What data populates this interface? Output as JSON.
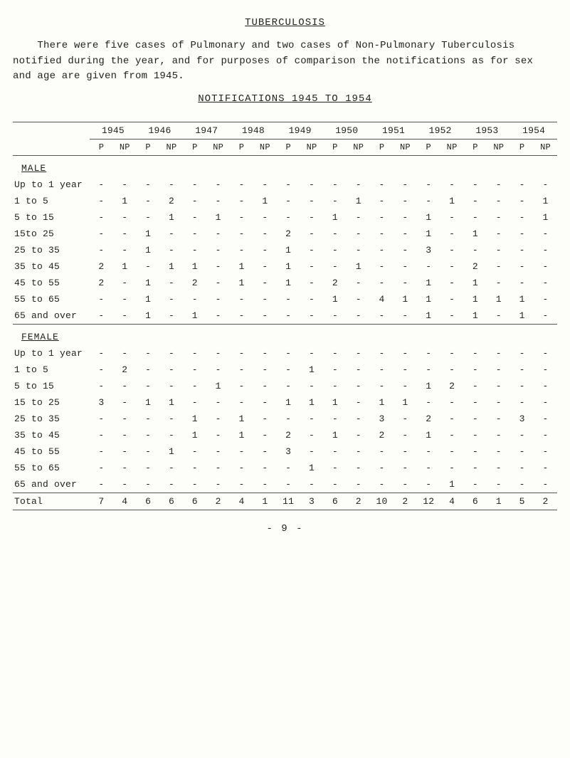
{
  "title": "TUBERCULOSIS",
  "intro": "    There were five cases of Pulmonary and two cases of Non-Pulmonary Tuberculosis notified during the year, and for purposes of comparison the notifications as for sex and age are given from 1945.",
  "subtitle": "NOTIFICATIONS 1945 TO 1954",
  "years": [
    "1945",
    "1946",
    "1947",
    "1948",
    "1949",
    "1950",
    "1951",
    "1952",
    "1953",
    "1954"
  ],
  "pnp_labels": [
    "P",
    "NP",
    "P",
    "NP",
    "P",
    "NP",
    "P",
    "NP",
    "P",
    "NP",
    "P",
    "NP",
    "P",
    "NP",
    "P",
    "NP",
    "P",
    "NP",
    "P",
    "NP"
  ],
  "groups": [
    {
      "label": "MALE",
      "rows": [
        {
          "label": "Up to 1 year",
          "cells": [
            "-",
            "-",
            "-",
            "-",
            "-",
            "-",
            "-",
            "-",
            "-",
            "-",
            "-",
            "-",
            "-",
            "-",
            "-",
            "-",
            "-",
            "-",
            "-",
            "-"
          ]
        },
        {
          "label": "1 to 5",
          "cells": [
            "-",
            "1",
            "-",
            "2",
            "-",
            "-",
            "-",
            "1",
            "-",
            "-",
            "-",
            "1",
            "-",
            "-",
            "-",
            "1",
            "-",
            "-",
            "-",
            "1"
          ]
        },
        {
          "label": "5 to 15",
          "cells": [
            "-",
            "-",
            "-",
            "1",
            "-",
            "1",
            "-",
            "-",
            "-",
            "-",
            "1",
            "-",
            "-",
            "-",
            "1",
            "-",
            "-",
            "-",
            "-",
            "1"
          ]
        },
        {
          "label": "15to 25",
          "cells": [
            "-",
            "-",
            "1",
            "-",
            "-",
            "-",
            "-",
            "-",
            "2",
            "-",
            "-",
            "-",
            "-",
            "-",
            "1",
            "-",
            "1",
            "-",
            "-",
            "-"
          ]
        },
        {
          "label": "25 to 35",
          "cells": [
            "-",
            "-",
            "1",
            "-",
            "-",
            "-",
            "-",
            "-",
            "1",
            "-",
            "-",
            "-",
            "-",
            "-",
            "3",
            "-",
            "-",
            "-",
            "-",
            "-"
          ]
        },
        {
          "label": "35 to 45",
          "cells": [
            "2",
            "1",
            "-",
            "1",
            "1",
            "-",
            "1",
            "-",
            "1",
            "-",
            "-",
            "1",
            "-",
            "-",
            "-",
            "-",
            "2",
            "-",
            "-",
            "-"
          ]
        },
        {
          "label": "45 to 55",
          "cells": [
            "2",
            "-",
            "1",
            "-",
            "2",
            "-",
            "1",
            "-",
            "1",
            "-",
            "2",
            "-",
            "-",
            "-",
            "1",
            "-",
            "1",
            "-",
            "-",
            "-"
          ]
        },
        {
          "label": "55 to 65",
          "cells": [
            "-",
            "-",
            "1",
            "-",
            "-",
            "-",
            "-",
            "-",
            "-",
            "-",
            "1",
            "-",
            "4",
            "1",
            "1",
            "-",
            "1",
            "1",
            "1",
            "-"
          ]
        },
        {
          "label": "65 and over",
          "cells": [
            "-",
            "-",
            "1",
            "-",
            "1",
            "-",
            "-",
            "-",
            "-",
            "-",
            "-",
            "-",
            "-",
            "-",
            "1",
            "-",
            "1",
            "-",
            "1",
            "-"
          ]
        }
      ]
    },
    {
      "label": "FEMALE",
      "rows": [
        {
          "label": "Up to 1 year",
          "cells": [
            "-",
            "-",
            "-",
            "-",
            "-",
            "-",
            "-",
            "-",
            "-",
            "-",
            "-",
            "-",
            "-",
            "-",
            "-",
            "-",
            "-",
            "-",
            "-",
            "-"
          ]
        },
        {
          "label": "1 to 5",
          "cells": [
            "-",
            "2",
            "-",
            "-",
            "-",
            "-",
            "-",
            "-",
            "-",
            "1",
            "-",
            "-",
            "-",
            "-",
            "-",
            "-",
            "-",
            "-",
            "-",
            "-"
          ]
        },
        {
          "label": "5 to 15",
          "cells": [
            "-",
            "-",
            "-",
            "-",
            "-",
            "1",
            "-",
            "-",
            "-",
            "-",
            "-",
            "-",
            "-",
            "-",
            "1",
            "2",
            "-",
            "-",
            "-",
            "-"
          ]
        },
        {
          "label": "15 to 25",
          "cells": [
            "3",
            "-",
            "1",
            "1",
            "-",
            "-",
            "-",
            "-",
            "1",
            "1",
            "1",
            "-",
            "1",
            "1",
            "-",
            "-",
            "-",
            "-",
            "-",
            "-"
          ]
        },
        {
          "label": "25 to 35",
          "cells": [
            "-",
            "-",
            "-",
            "-",
            "1",
            "-",
            "1",
            "-",
            "-",
            "-",
            "-",
            "-",
            "3",
            "-",
            "2",
            "-",
            "-",
            "-",
            "3",
            "-"
          ]
        },
        {
          "label": "35 to 45",
          "cells": [
            "-",
            "-",
            "-",
            "-",
            "1",
            "-",
            "1",
            "-",
            "2",
            "-",
            "1",
            "-",
            "2",
            "-",
            "1",
            "-",
            "-",
            "-",
            "-",
            "-"
          ]
        },
        {
          "label": "45 to 55",
          "cells": [
            "-",
            "-",
            "-",
            "1",
            "-",
            "-",
            "-",
            "-",
            "3",
            "-",
            "-",
            "-",
            "-",
            "-",
            "-",
            "-",
            "-",
            "-",
            "-",
            "-"
          ]
        },
        {
          "label": "55 to 65",
          "cells": [
            "-",
            "-",
            "-",
            "-",
            "-",
            "-",
            "-",
            "-",
            "-",
            "1",
            "-",
            "-",
            "-",
            "-",
            "-",
            "-",
            "-",
            "-",
            "-",
            "-"
          ]
        },
        {
          "label": "65 and over",
          "cells": [
            "-",
            "-",
            "-",
            "-",
            "-",
            "-",
            "-",
            "-",
            "-",
            "-",
            "-",
            "-",
            "-",
            "-",
            "-",
            "1",
            "-",
            "-",
            "-",
            "-"
          ]
        }
      ]
    }
  ],
  "total": {
    "label": "Total",
    "cells": [
      "7",
      "4",
      "6",
      "6",
      "6",
      "2",
      "4",
      "1",
      "11",
      "3",
      "6",
      "2",
      "10",
      "2",
      "12",
      "4",
      "6",
      "1",
      "5",
      "2"
    ]
  },
  "footer": "- 9 -"
}
